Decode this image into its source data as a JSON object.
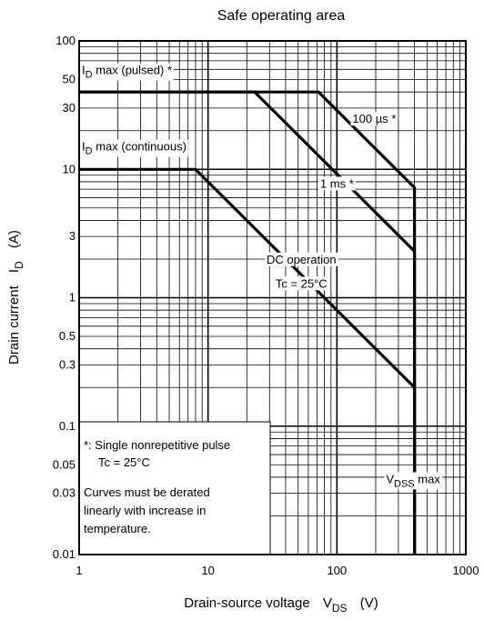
{
  "chart_data": {
    "type": "line",
    "title": "Safe operating area",
    "xlabel": "Drain-source voltage",
    "xlabel_sym": "V",
    "xlabel_sub": "DS",
    "xlabel_unit": "(V)",
    "ylabel": "Drain current",
    "ylabel_sym": "I",
    "ylabel_sub": "D",
    "ylabel_unit": "(A)",
    "x_scale": "log",
    "y_scale": "log",
    "xlim": [
      1,
      1000
    ],
    "ylim": [
      0.01,
      100
    ],
    "grid": true,
    "x_ticks": [
      {
        "value": 1,
        "label": "1"
      },
      {
        "value": 10,
        "label": "10"
      },
      {
        "value": 100,
        "label": "100"
      },
      {
        "value": 1000,
        "label": "1000"
      }
    ],
    "y_ticks": [
      {
        "value": 100,
        "label": "100"
      },
      {
        "value": 50,
        "label": "50"
      },
      {
        "value": 30,
        "label": "30"
      },
      {
        "value": 10,
        "label": "10"
      },
      {
        "value": 3,
        "label": "3"
      },
      {
        "value": 1,
        "label": "1"
      },
      {
        "value": 0.5,
        "label": "0.5"
      },
      {
        "value": 0.3,
        "label": "0.3"
      },
      {
        "value": 0.1,
        "label": "0.1"
      },
      {
        "value": 0.05,
        "label": "0.05"
      },
      {
        "value": 0.03,
        "label": "0.03"
      },
      {
        "value": 0.01,
        "label": "0.01"
      }
    ],
    "series": [
      {
        "name": "100 µs *",
        "points": [
          [
            1,
            40
          ],
          [
            72,
            40
          ],
          [
            400,
            7.2
          ],
          [
            400,
            0.01
          ]
        ]
      },
      {
        "name": "1 ms *",
        "points": [
          [
            1,
            40
          ],
          [
            23,
            40
          ],
          [
            400,
            2.3
          ],
          [
            400,
            0.01
          ]
        ]
      },
      {
        "name": "DC operation",
        "points": [
          [
            1,
            10
          ],
          [
            8,
            10
          ],
          [
            400,
            0.2
          ],
          [
            400,
            0.01
          ]
        ]
      }
    ],
    "annotations": [
      {
        "id": "id-pulsed",
        "prefix": "I",
        "sub": "D",
        "text": " max (pulsed) *",
        "x": 1.05,
        "y": 55
      },
      {
        "id": "id-continuous",
        "prefix": "I",
        "sub": "D",
        "text": " max (continuous)",
        "x": 1.05,
        "y": 14
      },
      {
        "id": "label-100us",
        "text": "100 µs *",
        "x": 195,
        "y": 23
      },
      {
        "id": "label-1ms",
        "text": "1 ms *",
        "x": 100,
        "y": 7.2
      },
      {
        "id": "label-dc-1",
        "text": "DC operation",
        "x": 53,
        "y": 1.85
      },
      {
        "id": "label-dc-2",
        "text": "Tc = 25°C",
        "x": 53,
        "y": 1.2
      },
      {
        "id": "label-vdss",
        "prefix": "V",
        "sub": "DSS",
        "text": " max",
        "x": 390,
        "y": 0.036
      }
    ],
    "note_lines": [
      "*: Single nonrepetitive pulse",
      "Tc = 25°C",
      "Curves must be derated",
      "linearly with increase in",
      "temperature."
    ]
  }
}
